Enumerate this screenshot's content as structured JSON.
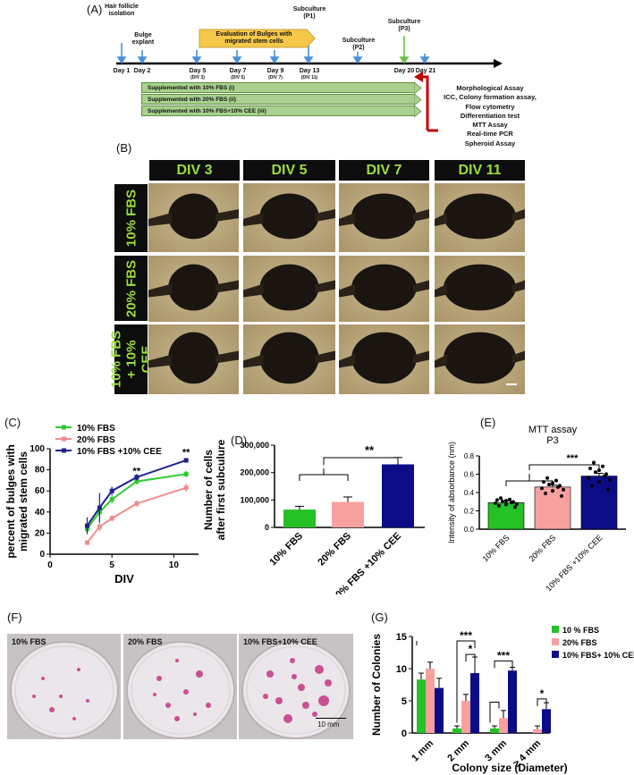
{
  "panels": {
    "A": "(A)",
    "B": "(B)",
    "C": "(C)",
    "D": "(D)",
    "E": "(E)",
    "F": "(F)",
    "G": "(G)"
  },
  "timeline": {
    "events": {
      "hair": "Hair follicle isolation",
      "bulge": "Bulge explant",
      "evaluation": "Evaluation of Bulges with migrated stem cells",
      "p1": "Subculture (P1)",
      "p2": "Subculture (P2)",
      "p3": "Subculture (P3)"
    },
    "days": [
      {
        "day": "Day 1",
        "sub": ""
      },
      {
        "day": "Day 2",
        "sub": ""
      },
      {
        "day": "Day 5",
        "sub": "(DIV 3)"
      },
      {
        "day": "Day 7",
        "sub": "(DIV 5)"
      },
      {
        "day": "Day 9",
        "sub": "(DIV 7)"
      },
      {
        "day": "Day 13",
        "sub": "(DIV 11)"
      },
      {
        "day": "Day 20",
        "sub": ""
      },
      {
        "day": "Day 21",
        "sub": ""
      }
    ],
    "bars": [
      "Supplemented with 10% FBS (i)",
      "Supplemented with 20% FBS (ii)",
      "Supplemented with 10% FBS+10% CEE (iii)"
    ],
    "assays": [
      "Morphological Assay",
      "ICC, Colony formation assay,",
      "Flow cytometry",
      "Differentiation test",
      "MTT Assay",
      "Real-time PCR",
      "Spheroid Assay"
    ]
  },
  "micrographs": {
    "columns": [
      "DIV 3",
      "DIV 5",
      "DIV 7",
      "DIV 11"
    ],
    "rows": [
      "10% FBS",
      "20% FBS",
      "10% FBS + 10% CEE"
    ]
  },
  "colors": {
    "green": "#2ecc2e",
    "pink": "#f08c8c",
    "navy": "#1f1f8f",
    "bar_green": "#25c125",
    "bar_pink": "#f7a0a0",
    "bar_navy": "#0c0c86"
  },
  "chart_data": [
    {
      "type": "line",
      "panel": "C",
      "ylabel": "percent of bulges with migrated stem cells",
      "xlabel": "DIV",
      "xlim": [
        0,
        12
      ],
      "ylim": [
        0,
        100
      ],
      "xticks": [
        0,
        5,
        10
      ],
      "yticks": [
        0,
        20,
        40,
        60,
        80,
        100
      ],
      "legend_position": "top-left",
      "series": [
        {
          "name": "10% FBS",
          "color": "#2ecc2e",
          "x": [
            3,
            4,
            5,
            7,
            11
          ],
          "y": [
            24,
            40,
            52,
            69,
            76
          ],
          "err": [
            5,
            5,
            4,
            3,
            3
          ]
        },
        {
          "name": "20% FBS",
          "color": "#f08c8c",
          "x": [
            3,
            4,
            5,
            7,
            11
          ],
          "y": [
            11,
            26,
            34,
            48,
            63
          ],
          "err": [
            2,
            4,
            3,
            3,
            4
          ]
        },
        {
          "name": "10% FBS +10% CEE",
          "color": "#1f1f8f",
          "x": [
            3,
            4,
            5,
            7,
            11
          ],
          "y": [
            27,
            44,
            60,
            73,
            89
          ],
          "err": [
            8,
            14,
            4,
            3,
            2
          ]
        }
      ],
      "annotations": [
        {
          "x": 7,
          "text": "**"
        },
        {
          "x": 11,
          "text": "**"
        }
      ]
    },
    {
      "type": "bar",
      "panel": "D",
      "ylabel": "Number of cells after first subculure",
      "categories": [
        "10% FBS",
        "20% FBS",
        "10% FBS +10% CEE"
      ],
      "values": [
        65000,
        93000,
        230000
      ],
      "errors": [
        12000,
        18000,
        25000
      ],
      "colors": [
        "#25c125",
        "#f7a0a0",
        "#0c0c86"
      ],
      "ylim": [
        0,
        300000
      ],
      "yticks": [
        "0",
        "100,000",
        "200,000",
        "300,000"
      ],
      "significance": "**"
    },
    {
      "type": "bar",
      "panel": "E",
      "title": "MTT assay",
      "subtitle": "P3",
      "ylabel": "Intensity of absorbance (nm)",
      "categories": [
        "10% FBS",
        "20% FBS",
        "10% FBS +10% CEE"
      ],
      "values": [
        0.29,
        0.46,
        0.58
      ],
      "errors": [
        0.02,
        0.02,
        0.03
      ],
      "colors": [
        "#25c125",
        "#f7a0a0",
        "#0c0c86"
      ],
      "ylim": [
        0,
        0.8
      ],
      "yticks": [
        "0.0",
        "0.2",
        "0.4",
        "0.6",
        "0.8"
      ],
      "significance": "***"
    },
    {
      "type": "bar",
      "panel": "G",
      "ylabel": "Number of Colonies",
      "xlabel": "Colony size (Diameter)",
      "categories": [
        "1 mm",
        "2 mm",
        "3 mm",
        "≥ 4 mm"
      ],
      "ylim": [
        0,
        15
      ],
      "yticks": [
        "0",
        "5",
        "10",
        "15"
      ],
      "legend_position": "top-right",
      "series": [
        {
          "name": "10 % FBS",
          "color": "#25c125",
          "values": [
            8.3,
            0.7,
            0.7,
            0
          ],
          "errors": [
            1.0,
            0.4,
            0.4,
            0
          ]
        },
        {
          "name": "20% FBS",
          "color": "#f7a0a0",
          "values": [
            10,
            5,
            2.3,
            0.6
          ],
          "errors": [
            1.0,
            1.0,
            1.2,
            0.5
          ]
        },
        {
          "name": "10% FBS+ 10% CEE",
          "color": "#0c0c86",
          "values": [
            7,
            9.3,
            9.7,
            3.7
          ],
          "errors": [
            1.5,
            2.5,
            0.5,
            1.0
          ]
        }
      ],
      "annotations": [
        "***",
        "*",
        "***",
        "*"
      ]
    }
  ],
  "dishes": {
    "labels": [
      "10% FBS",
      "20% FBS",
      "10% FBS+10% CEE"
    ],
    "scale_bar": "10 mm"
  }
}
